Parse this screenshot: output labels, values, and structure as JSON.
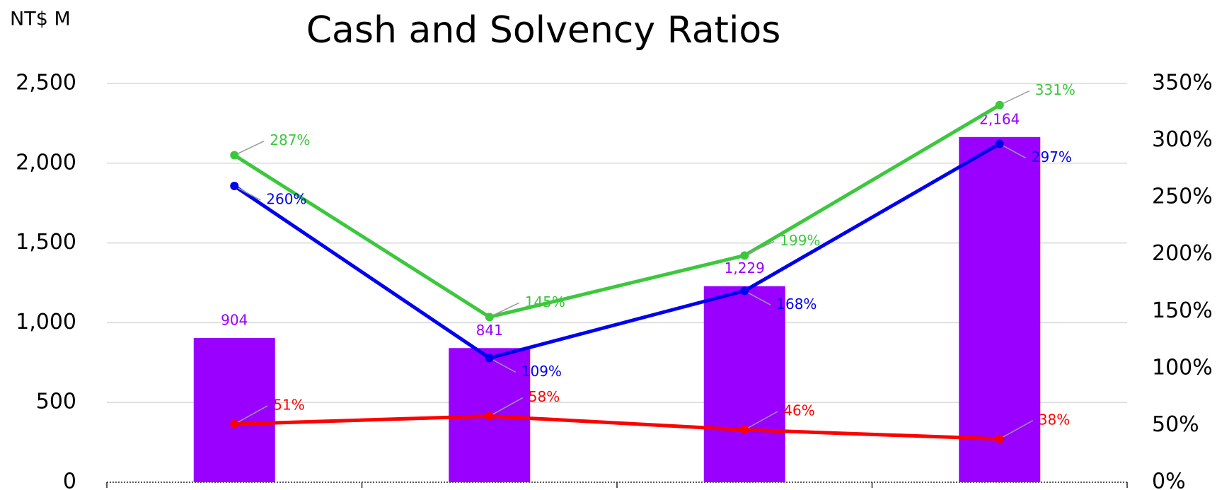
{
  "chart_data": {
    "type": "bar",
    "title": "Cash and Solvency Ratios",
    "y_label": "NT$ M",
    "categories": [
      null,
      null,
      null,
      null
    ],
    "series": [
      {
        "type": "bar",
        "color": "#9900ff",
        "values": [
          904,
          841,
          1229,
          2164
        ],
        "value_labels": [
          "904",
          "841",
          "1,229",
          "2,164"
        ]
      },
      {
        "type": "line",
        "axis": "y2",
        "color": "#3cc83c",
        "values": [
          287,
          145,
          199,
          331
        ],
        "value_labels": [
          "287%",
          "145%",
          "199%",
          "331%"
        ]
      },
      {
        "type": "line",
        "axis": "y2",
        "color": "#0000ee",
        "values": [
          260,
          109,
          168,
          297
        ],
        "value_labels": [
          "260%",
          "109%",
          "168%",
          "297%"
        ]
      },
      {
        "type": "line",
        "axis": "y2",
        "color": "#ff0000",
        "values": [
          51,
          58,
          46,
          38
        ],
        "value_labels": [
          "51%",
          "58%",
          "46%",
          "38%"
        ]
      }
    ],
    "ylim": [
      0,
      2500
    ],
    "yticks": [
      0,
      500,
      {
        "value": 1000,
        "label": "1,000"
      },
      {
        "value": 1500,
        "label": "1,500"
      },
      {
        "value": 2000,
        "label": "2,000"
      },
      {
        "value": 2500,
        "label": "2,500"
      }
    ],
    "y2lim": [
      0,
      350
    ],
    "y2ticks": [
      {
        "value": 0,
        "label": "0%"
      },
      {
        "value": 50,
        "label": "50%"
      },
      {
        "value": 100,
        "label": "100%"
      },
      {
        "value": 150,
        "label": "150%"
      },
      {
        "value": 200,
        "label": "200%"
      },
      {
        "value": 250,
        "label": "250%"
      },
      {
        "value": 300,
        "label": "300%"
      },
      {
        "value": 350,
        "label": "350%"
      }
    ],
    "grid": true
  }
}
